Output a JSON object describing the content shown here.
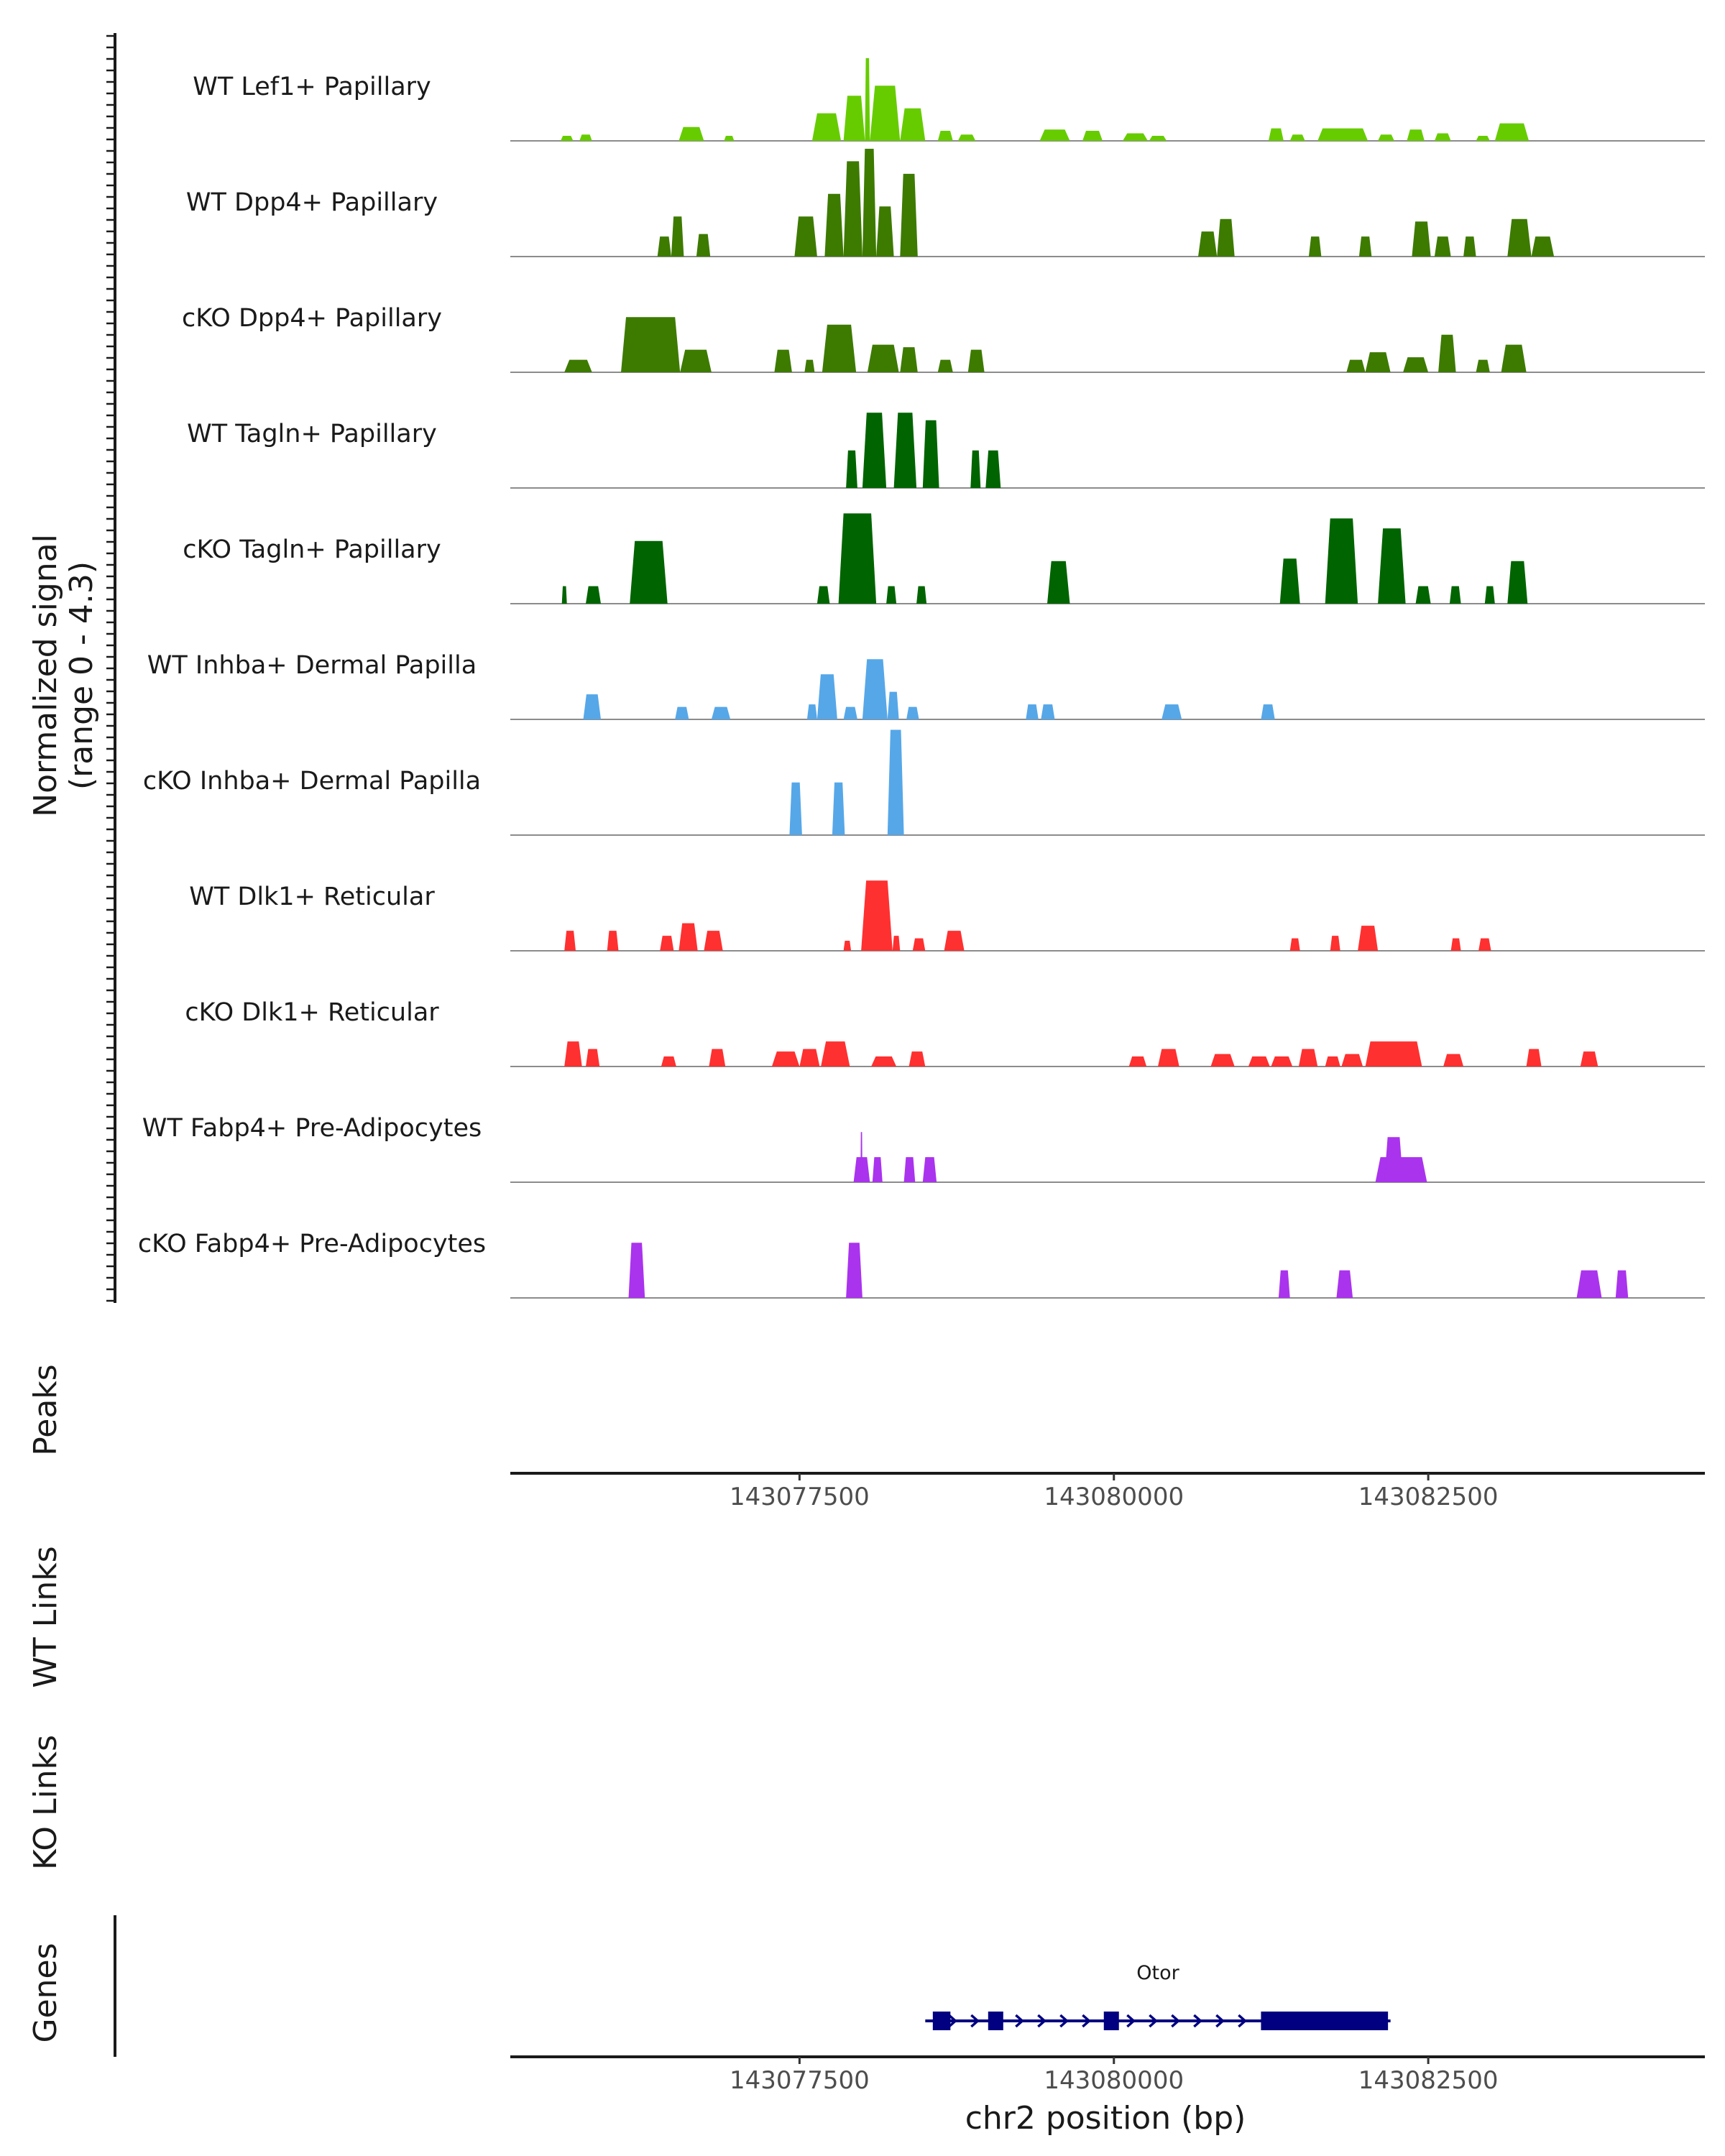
{
  "chart_data": {
    "type": "area",
    "title": "",
    "chromosome": "chr2",
    "xlim": [
      143075200,
      143084700
    ],
    "xlabel": "chr2 position (bp)",
    "xticks": [
      143077500,
      143080000,
      143082500
    ],
    "xtick_labels": [
      "143077500",
      "143080000",
      "143082500"
    ],
    "ylabel": "Normalized signal",
    "ylabel_range": "(range 0 - 4.3)",
    "ylim": [
      0,
      4.3
    ],
    "panel_titles": {
      "peaks": "Peaks",
      "wt_links": "WT Links",
      "ko_links": "KO Links",
      "genes": "Genes"
    },
    "colors": {
      "lef1": "#66cc00",
      "dpp4": "#3d7a00",
      "tagln": "#006400",
      "inhba": "#56a7e8",
      "dlk1": "#ff3030",
      "fabp4": "#aa33ee",
      "gene": "#000080",
      "baseline": "#8c8c8c"
    },
    "tracks": [
      {
        "label": "WT Lef1+ Papillary",
        "color_key": "lef1",
        "peaks": [
          {
            "s": 143075600,
            "e": 143075700,
            "h": 0.2
          },
          {
            "s": 143075750,
            "e": 143075850,
            "h": 0.25
          },
          {
            "s": 143076540,
            "e": 143076740,
            "h": 0.55
          },
          {
            "s": 143076900,
            "e": 143076980,
            "h": 0.2
          },
          {
            "s": 143077600,
            "e": 143077830,
            "h": 1.1
          },
          {
            "s": 143077850,
            "e": 143078020,
            "h": 1.8
          },
          {
            "s": 143078020,
            "e": 143078060,
            "h": 3.3
          },
          {
            "s": 143078060,
            "e": 143078300,
            "h": 2.2
          },
          {
            "s": 143078300,
            "e": 143078500,
            "h": 1.3
          },
          {
            "s": 143078600,
            "e": 143078720,
            "h": 0.4
          },
          {
            "s": 143078760,
            "e": 143078900,
            "h": 0.25
          },
          {
            "s": 143079410,
            "e": 143079650,
            "h": 0.45
          },
          {
            "s": 143079750,
            "e": 143079910,
            "h": 0.4
          },
          {
            "s": 143080070,
            "e": 143080270,
            "h": 0.3
          },
          {
            "s": 143080280,
            "e": 143080420,
            "h": 0.2
          },
          {
            "s": 143081230,
            "e": 143081350,
            "h": 0.5
          },
          {
            "s": 143081400,
            "e": 143081520,
            "h": 0.25
          },
          {
            "s": 143081620,
            "e": 143082020,
            "h": 0.5
          },
          {
            "s": 143082100,
            "e": 143082230,
            "h": 0.25
          },
          {
            "s": 143082330,
            "e": 143082470,
            "h": 0.45
          },
          {
            "s": 143082550,
            "e": 143082680,
            "h": 0.3
          },
          {
            "s": 143082880,
            "e": 143082990,
            "h": 0.2
          },
          {
            "s": 143083030,
            "e": 143083300,
            "h": 0.7
          }
        ]
      },
      {
        "label": "WT Dpp4+ Papillary",
        "color_key": "dpp4",
        "peaks": [
          {
            "s": 143076370,
            "e": 143076480,
            "h": 0.8
          },
          {
            "s": 143076480,
            "e": 143076580,
            "h": 1.6
          },
          {
            "s": 143076680,
            "e": 143076790,
            "h": 0.9
          },
          {
            "s": 143077460,
            "e": 143077640,
            "h": 1.6
          },
          {
            "s": 143077700,
            "e": 143077850,
            "h": 2.5
          },
          {
            "s": 143077850,
            "e": 143078000,
            "h": 3.8
          },
          {
            "s": 143078000,
            "e": 143078110,
            "h": 4.3
          },
          {
            "s": 143078110,
            "e": 143078250,
            "h": 2.0
          },
          {
            "s": 143078300,
            "e": 143078440,
            "h": 3.3
          },
          {
            "s": 143080670,
            "e": 143080820,
            "h": 1.0
          },
          {
            "s": 143080820,
            "e": 143080960,
            "h": 1.5
          },
          {
            "s": 143081550,
            "e": 143081650,
            "h": 0.8
          },
          {
            "s": 143081950,
            "e": 143082050,
            "h": 0.8
          },
          {
            "s": 143082370,
            "e": 143082520,
            "h": 1.4
          },
          {
            "s": 143082550,
            "e": 143082680,
            "h": 0.8
          },
          {
            "s": 143082780,
            "e": 143082880,
            "h": 0.8
          },
          {
            "s": 143083130,
            "e": 143083320,
            "h": 1.5
          },
          {
            "s": 143083320,
            "e": 143083500,
            "h": 0.8
          }
        ]
      },
      {
        "label": "cKO Dpp4+ Papillary",
        "color_key": "dpp4",
        "peaks": [
          {
            "s": 143075630,
            "e": 143075850,
            "h": 0.5
          },
          {
            "s": 143076080,
            "e": 143076550,
            "h": 2.2
          },
          {
            "s": 143076550,
            "e": 143076800,
            "h": 0.9
          },
          {
            "s": 143077300,
            "e": 143077440,
            "h": 0.9
          },
          {
            "s": 143077540,
            "e": 143077620,
            "h": 0.5
          },
          {
            "s": 143077680,
            "e": 143077950,
            "h": 1.9
          },
          {
            "s": 143078040,
            "e": 143078290,
            "h": 1.1
          },
          {
            "s": 143078300,
            "e": 143078440,
            "h": 1.0
          },
          {
            "s": 143078600,
            "e": 143078720,
            "h": 0.5
          },
          {
            "s": 143078840,
            "e": 143078970,
            "h": 0.9
          },
          {
            "s": 143081850,
            "e": 143082000,
            "h": 0.5
          },
          {
            "s": 143082000,
            "e": 143082200,
            "h": 0.8
          },
          {
            "s": 143082300,
            "e": 143082500,
            "h": 0.6
          },
          {
            "s": 143082580,
            "e": 143082720,
            "h": 1.5
          },
          {
            "s": 143082880,
            "e": 143082990,
            "h": 0.5
          },
          {
            "s": 143083080,
            "e": 143083280,
            "h": 1.1
          }
        ]
      },
      {
        "label": "WT Tagln+ Papillary",
        "color_key": "tagln",
        "peaks": [
          {
            "s": 143077870,
            "e": 143077960,
            "h": 1.5
          },
          {
            "s": 143078000,
            "e": 143078190,
            "h": 3.0
          },
          {
            "s": 143078250,
            "e": 143078430,
            "h": 3.0
          },
          {
            "s": 143078480,
            "e": 143078610,
            "h": 2.7
          },
          {
            "s": 143078860,
            "e": 143078940,
            "h": 1.5
          },
          {
            "s": 143078980,
            "e": 143079100,
            "h": 1.5
          }
        ]
      },
      {
        "label": "cKO Tagln+ Papillary",
        "color_key": "tagln",
        "peaks": [
          {
            "s": 143075610,
            "e": 143075650,
            "h": 0.7
          },
          {
            "s": 143075800,
            "e": 143075920,
            "h": 0.7
          },
          {
            "s": 143076150,
            "e": 143076450,
            "h": 2.5
          },
          {
            "s": 143077640,
            "e": 143077740,
            "h": 0.7
          },
          {
            "s": 143077810,
            "e": 143078110,
            "h": 3.6
          },
          {
            "s": 143078190,
            "e": 143078270,
            "h": 0.7
          },
          {
            "s": 143078430,
            "e": 143078510,
            "h": 0.7
          },
          {
            "s": 143079470,
            "e": 143079650,
            "h": 1.7
          },
          {
            "s": 143081320,
            "e": 143081480,
            "h": 1.8
          },
          {
            "s": 143081680,
            "e": 143081940,
            "h": 3.4
          },
          {
            "s": 143082100,
            "e": 143082320,
            "h": 3.0
          },
          {
            "s": 143082400,
            "e": 143082520,
            "h": 0.7
          },
          {
            "s": 143082670,
            "e": 143082760,
            "h": 0.7
          },
          {
            "s": 143082950,
            "e": 143083030,
            "h": 0.7
          },
          {
            "s": 143083130,
            "e": 143083290,
            "h": 1.7
          }
        ]
      },
      {
        "label": "WT Inhba+ Dermal Papilla",
        "color_key": "inhba",
        "peaks": [
          {
            "s": 143075780,
            "e": 143075920,
            "h": 1.0
          },
          {
            "s": 143076510,
            "e": 143076620,
            "h": 0.5
          },
          {
            "s": 143076800,
            "e": 143076950,
            "h": 0.5
          },
          {
            "s": 143077560,
            "e": 143077640,
            "h": 0.6
          },
          {
            "s": 143077640,
            "e": 143077800,
            "h": 1.8
          },
          {
            "s": 143077850,
            "e": 143077960,
            "h": 0.5
          },
          {
            "s": 143078000,
            "e": 143078200,
            "h": 2.4
          },
          {
            "s": 143078200,
            "e": 143078290,
            "h": 1.1
          },
          {
            "s": 143078350,
            "e": 143078450,
            "h": 0.5
          },
          {
            "s": 143079300,
            "e": 143079400,
            "h": 0.6
          },
          {
            "s": 143079420,
            "e": 143079530,
            "h": 0.6
          },
          {
            "s": 143080380,
            "e": 143080540,
            "h": 0.6
          },
          {
            "s": 143081170,
            "e": 143081280,
            "h": 0.6
          }
        ]
      },
      {
        "label": "cKO Inhba+ Dermal Papilla",
        "color_key": "inhba",
        "peaks": [
          {
            "s": 143077420,
            "e": 143077520,
            "h": 2.1
          },
          {
            "s": 143077760,
            "e": 143077860,
            "h": 2.1
          },
          {
            "s": 143078200,
            "e": 143078330,
            "h": 4.2
          }
        ]
      },
      {
        "label": "WT Dlk1+ Reticular",
        "color_key": "dlk1",
        "peaks": [
          {
            "s": 143075630,
            "e": 143075720,
            "h": 0.8
          },
          {
            "s": 143075970,
            "e": 143076060,
            "h": 0.8
          },
          {
            "s": 143076390,
            "e": 143076500,
            "h": 0.6
          },
          {
            "s": 143076540,
            "e": 143076690,
            "h": 1.1
          },
          {
            "s": 143076740,
            "e": 143076890,
            "h": 0.8
          },
          {
            "s": 143077850,
            "e": 143077910,
            "h": 0.4
          },
          {
            "s": 143077990,
            "e": 143078240,
            "h": 2.8
          },
          {
            "s": 143078240,
            "e": 143078300,
            "h": 0.6
          },
          {
            "s": 143078400,
            "e": 143078500,
            "h": 0.5
          },
          {
            "s": 143078650,
            "e": 143078810,
            "h": 0.8
          },
          {
            "s": 143081400,
            "e": 143081480,
            "h": 0.5
          },
          {
            "s": 143081720,
            "e": 143081800,
            "h": 0.6
          },
          {
            "s": 143081940,
            "e": 143082100,
            "h": 1.0
          },
          {
            "s": 143082680,
            "e": 143082760,
            "h": 0.5
          },
          {
            "s": 143082900,
            "e": 143083000,
            "h": 0.5
          }
        ]
      },
      {
        "label": "cKO Dlk1+ Reticular",
        "color_key": "dlk1",
        "peaks": [
          {
            "s": 143075630,
            "e": 143075770,
            "h": 1.0
          },
          {
            "s": 143075800,
            "e": 143075910,
            "h": 0.7
          },
          {
            "s": 143076400,
            "e": 143076520,
            "h": 0.4
          },
          {
            "s": 143076780,
            "e": 143076910,
            "h": 0.7
          },
          {
            "s": 143077280,
            "e": 143077500,
            "h": 0.6
          },
          {
            "s": 143077500,
            "e": 143077660,
            "h": 0.7
          },
          {
            "s": 143077670,
            "e": 143077900,
            "h": 1.0
          },
          {
            "s": 143078070,
            "e": 143078270,
            "h": 0.4
          },
          {
            "s": 143078370,
            "e": 143078500,
            "h": 0.6
          },
          {
            "s": 143080120,
            "e": 143080260,
            "h": 0.4
          },
          {
            "s": 143080350,
            "e": 143080520,
            "h": 0.7
          },
          {
            "s": 143080770,
            "e": 143080960,
            "h": 0.5
          },
          {
            "s": 143081070,
            "e": 143081240,
            "h": 0.4
          },
          {
            "s": 143081250,
            "e": 143081420,
            "h": 0.4
          },
          {
            "s": 143081470,
            "e": 143081620,
            "h": 0.7
          },
          {
            "s": 143081680,
            "e": 143081800,
            "h": 0.4
          },
          {
            "s": 143081810,
            "e": 143081980,
            "h": 0.5
          },
          {
            "s": 143082000,
            "e": 143082450,
            "h": 1.0
          },
          {
            "s": 143082620,
            "e": 143082780,
            "h": 0.5
          },
          {
            "s": 143083280,
            "e": 143083400,
            "h": 0.7
          },
          {
            "s": 143083710,
            "e": 143083850,
            "h": 0.6
          }
        ]
      },
      {
        "label": "WT Fabp4+ Pre-Adipocytes",
        "color_key": "fabp4",
        "peaks": [
          {
            "s": 143077930,
            "e": 143078060,
            "h": 1.0
          },
          {
            "s": 143077985,
            "e": 143078000,
            "h": 2.0
          },
          {
            "s": 143078080,
            "e": 143078160,
            "h": 1.0
          },
          {
            "s": 143078330,
            "e": 143078420,
            "h": 1.0
          },
          {
            "s": 143078480,
            "e": 143078590,
            "h": 1.0
          },
          {
            "s": 143082080,
            "e": 143082490,
            "h": 1.0
          },
          {
            "s": 143082150,
            "e": 143082300,
            "h": 1.8
          }
        ]
      },
      {
        "label": "cKO Fabp4+ Pre-Adipocytes",
        "color_key": "fabp4",
        "peaks": [
          {
            "s": 143076140,
            "e": 143076270,
            "h": 2.2
          },
          {
            "s": 143077870,
            "e": 143078000,
            "h": 2.2
          },
          {
            "s": 143081310,
            "e": 143081400,
            "h": 1.1
          },
          {
            "s": 143081770,
            "e": 143081900,
            "h": 1.1
          },
          {
            "s": 143083680,
            "e": 143083880,
            "h": 1.1
          },
          {
            "s": 143083990,
            "e": 143084090,
            "h": 1.1
          }
        ]
      }
    ],
    "gene": {
      "name": "Otor",
      "start": 143078500,
      "end": 143082200,
      "strand": "+",
      "exons": [
        {
          "s": 143078560,
          "e": 143078700
        },
        {
          "s": 143079000,
          "e": 143079120
        },
        {
          "s": 143079920,
          "e": 143080040
        },
        {
          "s": 143081170,
          "e": 143082180
        }
      ]
    }
  }
}
